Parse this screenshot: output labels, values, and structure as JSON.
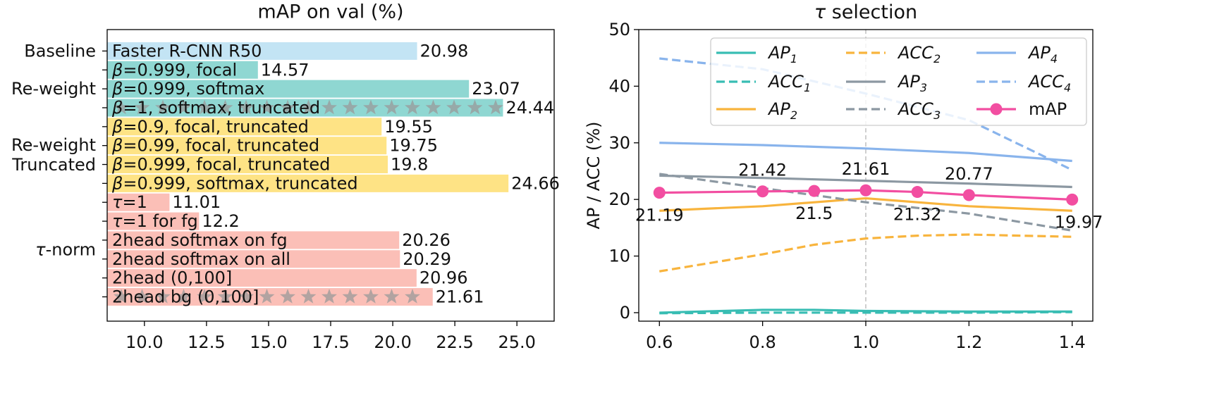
{
  "colors": {
    "baseline": "#c3e4f4",
    "reweight": "#8fd7d2",
    "truncated": "#fee385",
    "taunorm": "#fbbfb7",
    "ap1": "#38bdb3",
    "ap2": "#f8b43d",
    "ap3": "#8c98a2",
    "ap4": "#89b4ec",
    "map": "#f24ea1",
    "star": "#999999",
    "vline": "#bfbfbf"
  },
  "chart_data": [
    {
      "type": "bar",
      "orientation": "horizontal",
      "title": "mAP on val (%)",
      "xlim": [
        8.5,
        26.5
      ],
      "xticks": [
        "10.0",
        "12.5",
        "15.0",
        "17.5",
        "20.0",
        "22.5",
        "25.0"
      ],
      "groups": [
        {
          "label": "Baseline",
          "rows": [
            0
          ]
        },
        {
          "label": "Re-weight",
          "rows": [
            1,
            3
          ]
        },
        {
          "label": "Re-weight\nTruncated",
          "rows": [
            4,
            7
          ]
        },
        {
          "label": "τ-norm",
          "rows": [
            8,
            13
          ]
        }
      ],
      "bars": [
        {
          "pre": "",
          "rest": "Faster R-CNN R50",
          "value": 20.98,
          "value_label": "20.98",
          "group": "baseline",
          "starred": false
        },
        {
          "pre": "β",
          "rest": "=0.999, focal",
          "value": 14.57,
          "value_label": "14.57",
          "group": "reweight",
          "starred": false
        },
        {
          "pre": "β",
          "rest": "=0.999, softmax",
          "value": 23.07,
          "value_label": "23.07",
          "group": "reweight",
          "starred": false
        },
        {
          "pre": "β",
          "rest": "=1, softmax, truncated",
          "value": 24.44,
          "value_label": "24.44",
          "group": "reweight",
          "starred": true
        },
        {
          "pre": "β",
          "rest": "=0.9, focal, truncated",
          "value": 19.55,
          "value_label": "19.55",
          "group": "truncated",
          "starred": false
        },
        {
          "pre": "β",
          "rest": "=0.99, focal, truncated",
          "value": 19.75,
          "value_label": "19.75",
          "group": "truncated",
          "starred": false
        },
        {
          "pre": "β",
          "rest": "=0.999, focal, truncated",
          "value": 19.8,
          "value_label": "19.8",
          "group": "truncated",
          "starred": false
        },
        {
          "pre": "β",
          "rest": "=0.999, softmax, truncated",
          "value": 24.66,
          "value_label": "24.66",
          "group": "truncated",
          "starred": false
        },
        {
          "pre": "τ",
          "rest": "=1",
          "value": 11.01,
          "value_label": "11.01",
          "group": "taunorm",
          "starred": false
        },
        {
          "pre": "τ",
          "rest": "=1 for fg",
          "value": 12.2,
          "value_label": "12.2",
          "group": "taunorm",
          "starred": false
        },
        {
          "pre": "",
          "rest": "2head softmax on fg",
          "value": 20.26,
          "value_label": "20.26",
          "group": "taunorm",
          "starred": false
        },
        {
          "pre": "",
          "rest": "2head softmax on all",
          "value": 20.29,
          "value_label": "20.29",
          "group": "taunorm",
          "starred": false
        },
        {
          "pre": "",
          "rest": "2head (0,100]",
          "value": 20.96,
          "value_label": "20.96",
          "group": "taunorm",
          "starred": false
        },
        {
          "pre": "",
          "rest": "2head bg (0,100]",
          "value": 21.61,
          "value_label": "21.61",
          "group": "taunorm",
          "starred": true
        }
      ]
    },
    {
      "type": "line",
      "title": "τ selection",
      "title_pre": "τ",
      "title_rest": " selection",
      "ylabel": "AP / ACC (%)",
      "xlim": [
        0.56,
        1.44
      ],
      "ylim": [
        -1.5,
        50
      ],
      "xticks": [
        0.6,
        0.8,
        1.0,
        1.2,
        1.4
      ],
      "xtick_labels": [
        "0.6",
        "0.8",
        "1.0",
        "1.2",
        "1.4"
      ],
      "yticks": [
        0,
        10,
        20,
        30,
        40,
        50
      ],
      "ytick_labels": [
        "0",
        "10",
        "20",
        "30",
        "40",
        "50"
      ],
      "vline_x": 1.0,
      "series": [
        {
          "key": "ap1",
          "name": "AP",
          "sub": "1",
          "style": "solid",
          "color_key": "ap1",
          "x": [
            0.6,
            0.8,
            0.9,
            1.0,
            1.2,
            1.4
          ],
          "y": [
            0.0,
            0.5,
            0.5,
            0.3,
            0.2,
            0.2
          ]
        },
        {
          "key": "acc1",
          "name": "ACC",
          "sub": "1",
          "style": "dashed",
          "color_key": "ap1",
          "x": [
            0.6,
            0.8,
            1.0,
            1.2,
            1.4
          ],
          "y": [
            -0.1,
            0.0,
            0.0,
            0.0,
            0.1
          ]
        },
        {
          "key": "ap2",
          "name": "AP",
          "sub": "2",
          "style": "solid",
          "color_key": "ap2",
          "x": [
            0.6,
            0.8,
            1.0,
            1.2,
            1.4
          ],
          "y": [
            18.0,
            18.8,
            20.2,
            18.8,
            18.0
          ]
        },
        {
          "key": "acc2",
          "name": "ACC",
          "sub": "2",
          "style": "dashed",
          "color_key": "ap2",
          "x": [
            0.6,
            0.8,
            0.9,
            1.0,
            1.1,
            1.2,
            1.4
          ],
          "y": [
            7.3,
            10.3,
            12.0,
            13.1,
            13.6,
            13.8,
            13.4
          ]
        },
        {
          "key": "ap3",
          "name": "AP",
          "sub": "3",
          "style": "solid",
          "color_key": "ap3",
          "x": [
            0.6,
            0.8,
            1.0,
            1.2,
            1.4
          ],
          "y": [
            24.2,
            23.8,
            23.3,
            22.8,
            22.2
          ]
        },
        {
          "key": "acc3",
          "name": "ACC",
          "sub": "3",
          "style": "dashed",
          "color_key": "ap3",
          "x": [
            0.6,
            0.8,
            1.0,
            1.2,
            1.4
          ],
          "y": [
            24.5,
            22.0,
            19.5,
            17.5,
            14.5
          ]
        },
        {
          "key": "ap4",
          "name": "AP",
          "sub": "4",
          "style": "solid",
          "color_key": "ap4",
          "x": [
            0.6,
            0.8,
            1.0,
            1.2,
            1.4
          ],
          "y": [
            30.0,
            29.6,
            29.0,
            28.2,
            26.8
          ]
        },
        {
          "key": "acc4",
          "name": "ACC",
          "sub": "4",
          "style": "dashed",
          "color_key": "ap4",
          "x": [
            0.6,
            0.8,
            1.0,
            1.2,
            1.4
          ],
          "y": [
            44.9,
            43.0,
            38.7,
            34.0,
            25.2
          ]
        },
        {
          "key": "map",
          "name": "mAP",
          "sub": "",
          "style": "marker",
          "color_key": "map",
          "x": [
            0.6,
            0.8,
            0.9,
            1.0,
            1.1,
            1.2,
            1.4
          ],
          "y": [
            21.19,
            21.42,
            21.5,
            21.61,
            21.32,
            20.77,
            19.97
          ]
        }
      ],
      "legend": {
        "placement": "top-right",
        "columns": [
          [
            "ap1",
            "acc1",
            "ap2"
          ],
          [
            "acc2",
            "ap3",
            "acc3"
          ],
          [
            "ap4",
            "acc4",
            "map"
          ]
        ]
      },
      "annotations": [
        {
          "text": "21.19",
          "x": 0.6,
          "pos": "below"
        },
        {
          "text": "21.42",
          "x": 0.8,
          "pos": "above"
        },
        {
          "text": "21.5",
          "x": 0.9,
          "pos": "below"
        },
        {
          "text": "21.61",
          "x": 1.0,
          "pos": "above"
        },
        {
          "text": "21.32",
          "x": 1.1,
          "pos": "below"
        },
        {
          "text": "20.77",
          "x": 1.2,
          "pos": "above"
        },
        {
          "text": "19.97",
          "x": 1.4,
          "pos": "below"
        }
      ]
    }
  ]
}
